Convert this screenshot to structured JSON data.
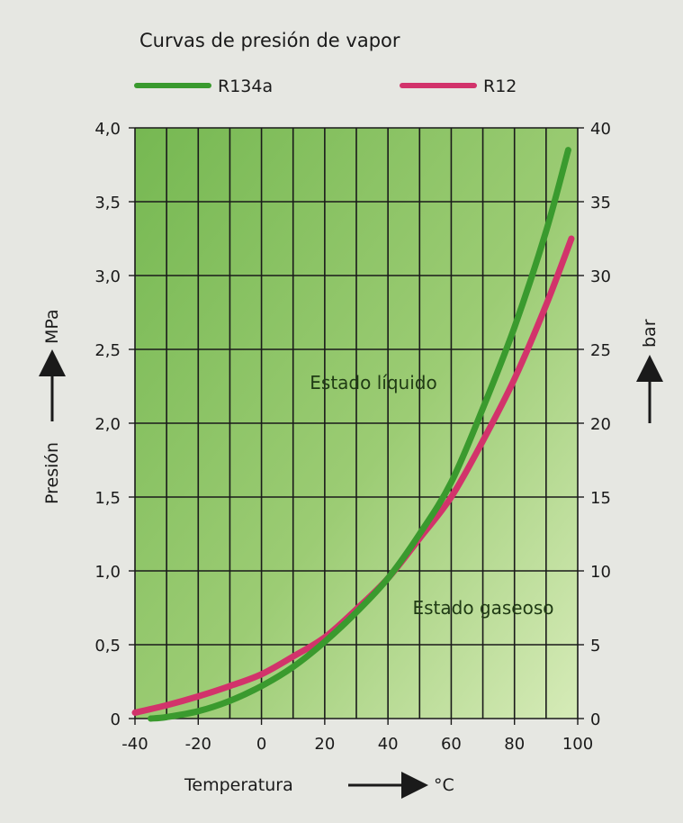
{
  "chart_data": {
    "type": "line",
    "title": "Curvas de presión de vapor",
    "xlabel": "Temperatura",
    "xunit": "°C",
    "ylabel": "Presión",
    "yunit_left": "MPa",
    "yunit_right": "bar",
    "xlim": [
      -40,
      100
    ],
    "ylim": [
      0,
      4.0
    ],
    "ylim_right": [
      0,
      40
    ],
    "x_ticks": [
      "-40",
      "-20",
      "0",
      "20",
      "40",
      "60",
      "80",
      "100"
    ],
    "y_ticks_left": [
      "0",
      "0,5",
      "1,0",
      "1,5",
      "2,0",
      "2,5",
      "3,0",
      "3,5",
      "4,0"
    ],
    "y_ticks_right": [
      "0",
      "5",
      "10",
      "15",
      "20",
      "25",
      "30",
      "35",
      "40"
    ],
    "grid": true,
    "legend_position": "top",
    "series": [
      {
        "name": "R134a",
        "color": "#3a9a2e",
        "x": [
          -35,
          -30,
          -20,
          -10,
          0,
          10,
          20,
          30,
          40,
          50,
          60,
          70,
          80,
          90,
          97
        ],
        "y": [
          0.0,
          0.01,
          0.05,
          0.12,
          0.22,
          0.35,
          0.52,
          0.72,
          0.95,
          1.25,
          1.6,
          2.1,
          2.65,
          3.3,
          3.85
        ]
      },
      {
        "name": "R12",
        "color": "#d2336b",
        "x": [
          -40,
          -30,
          -20,
          -10,
          0,
          10,
          20,
          30,
          40,
          50,
          60,
          70,
          80,
          90,
          98
        ],
        "y": [
          0.04,
          0.09,
          0.15,
          0.22,
          0.3,
          0.42,
          0.55,
          0.74,
          0.95,
          1.22,
          1.5,
          1.88,
          2.3,
          2.8,
          3.25
        ]
      }
    ],
    "annotations": [
      {
        "text": "Estado líquido",
        "x": 35,
        "y": 2.25
      },
      {
        "text": "Estado gaseoso",
        "x": 80,
        "y": 0.75
      }
    ]
  }
}
